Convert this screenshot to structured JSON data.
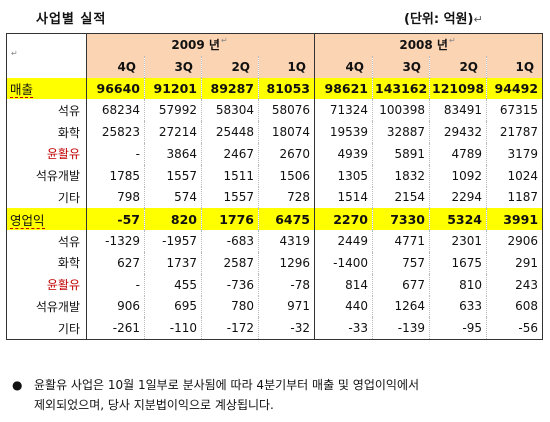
{
  "title": "사업별 실적",
  "unit": "(단위: 억원)",
  "years": [
    "2009 년",
    "2008 년"
  ],
  "quarters": [
    "4Q",
    "3Q",
    "2Q",
    "1Q",
    "4Q",
    "3Q",
    "2Q",
    "1Q"
  ],
  "rows": [
    {
      "label": "매출",
      "highlight": true,
      "red": false,
      "values": [
        "96640",
        "91201",
        "89287",
        "81053",
        "98621",
        "143162",
        "121098",
        "94492"
      ]
    },
    {
      "label": "석유",
      "highlight": false,
      "red": false,
      "values": [
        "68234",
        "57992",
        "58304",
        "58076",
        "71324",
        "100398",
        "83491",
        "67315"
      ]
    },
    {
      "label": "화학",
      "highlight": false,
      "red": false,
      "values": [
        "25823",
        "27214",
        "25448",
        "18074",
        "19539",
        "32887",
        "29432",
        "21787"
      ]
    },
    {
      "label": "윤활유",
      "highlight": false,
      "red": true,
      "values": [
        "-",
        "3864",
        "2467",
        "2670",
        "4939",
        "5891",
        "4789",
        "3179"
      ]
    },
    {
      "label": "석유개발",
      "highlight": false,
      "red": false,
      "values": [
        "1785",
        "1557",
        "1511",
        "1506",
        "1305",
        "1832",
        "1092",
        "1024"
      ]
    },
    {
      "label": "기타",
      "highlight": false,
      "red": false,
      "values": [
        "798",
        "574",
        "1557",
        "728",
        "1514",
        "2154",
        "2294",
        "1187"
      ]
    },
    {
      "label": "영업익",
      "highlight": true,
      "red": false,
      "values": [
        "-57",
        "820",
        "1776",
        "6475",
        "2270",
        "7330",
        "5324",
        "3991"
      ]
    },
    {
      "label": "석유",
      "highlight": false,
      "red": false,
      "values": [
        "-1329",
        "-1957",
        "-683",
        "4319",
        "2449",
        "4771",
        "2301",
        "2906"
      ]
    },
    {
      "label": "화학",
      "highlight": false,
      "red": false,
      "values": [
        "627",
        "1737",
        "2587",
        "1296",
        "-1400",
        "757",
        "1675",
        "291"
      ]
    },
    {
      "label": "윤활유",
      "highlight": false,
      "red": true,
      "values": [
        "-",
        "455",
        "-736",
        "-78",
        "814",
        "677",
        "810",
        "243"
      ]
    },
    {
      "label": "석유개발",
      "highlight": false,
      "red": false,
      "values": [
        "906",
        "695",
        "780",
        "971",
        "440",
        "1264",
        "633",
        "608"
      ]
    },
    {
      "label": "기타",
      "highlight": false,
      "red": false,
      "values": [
        "-261",
        "-110",
        "-172",
        "-32",
        "-33",
        "-139",
        "-95",
        "-56"
      ]
    }
  ],
  "note_lines": [
    "윤활유 사업은 10월 1일부로 분사됨에 따라 4분기부터 매출 및 영업이익에서",
    "제외되었으며, 당사 지분법이익으로 계상됩니다."
  ]
}
